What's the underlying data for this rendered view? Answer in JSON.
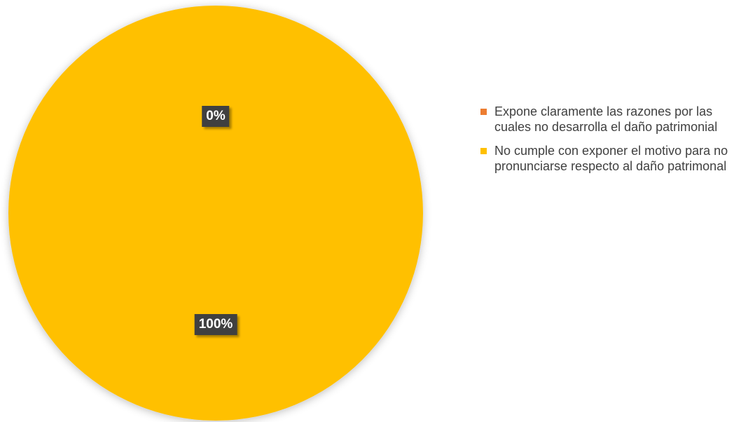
{
  "chart_data": {
    "type": "pie",
    "title": "",
    "slices": [
      {
        "label": "Expone claramente las razones por las cuales no desarrolla el daño patrimonial",
        "value": 0,
        "data_label": "0%",
        "color": "#ED7D31"
      },
      {
        "label": "No cumple con exponer el motivo para no pronunciarse respecto al daño patrimonal",
        "value": 100,
        "data_label": "100%",
        "color": "#FFC000"
      }
    ],
    "legend_position": "right"
  }
}
